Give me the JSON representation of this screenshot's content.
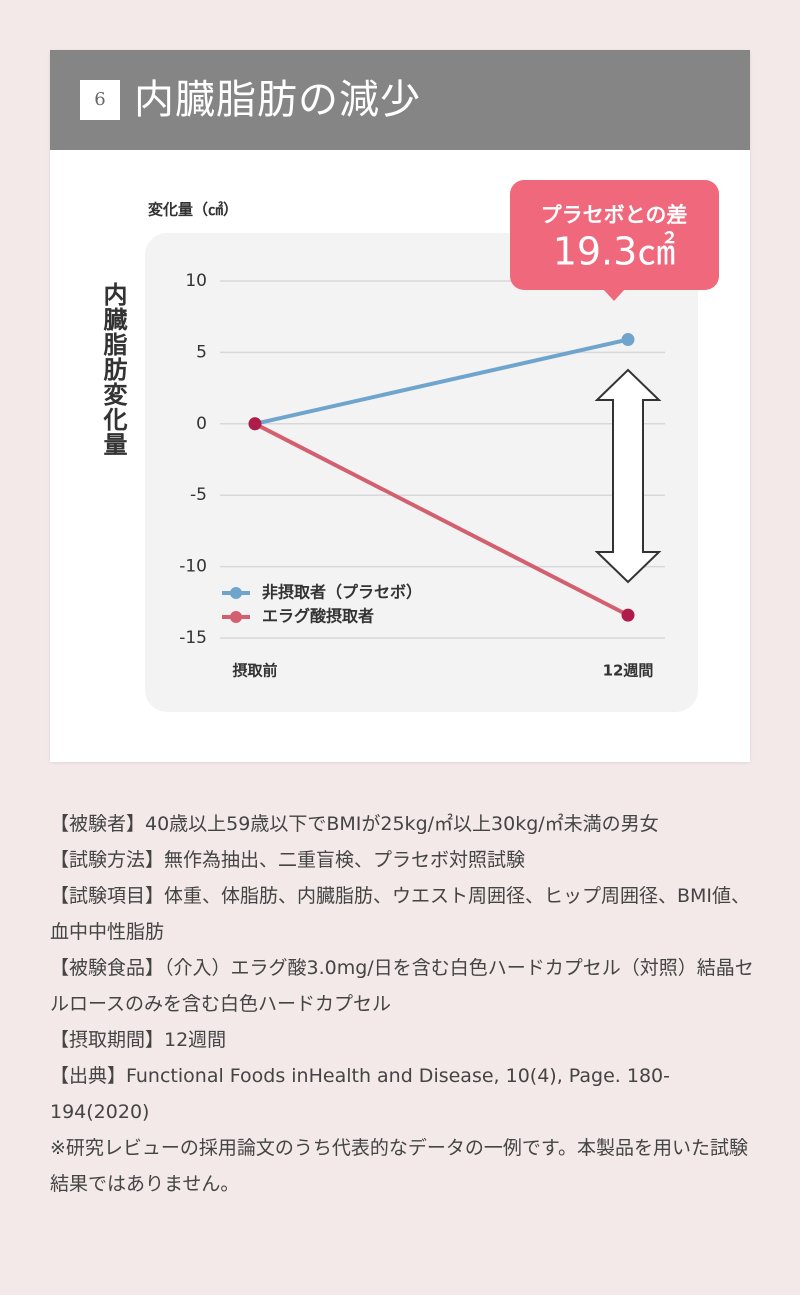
{
  "header": {
    "badge": "6",
    "title": "内臓脂肪の減少"
  },
  "chart_data": {
    "type": "line",
    "y_label": "変化量（㎠）",
    "y_axis_title": "内臓脂肪変化量",
    "categories": [
      "摂取前",
      "12週間"
    ],
    "series": [
      {
        "name": "非摂取者（プラセボ）",
        "color": "#6fa5cd",
        "marker_color": "#6fa5cd",
        "values": [
          0,
          5.9
        ]
      },
      {
        "name": "エラグ酸摂取者",
        "color": "#d3606f",
        "marker_color": "#b01c4a",
        "values": [
          0,
          -13.4
        ]
      }
    ],
    "ylim": [
      -15,
      10
    ],
    "yticks": [
      -15,
      -10,
      -5,
      0,
      5,
      10
    ],
    "grid": true,
    "legend": "lower left",
    "annotations": [
      "プラセボとの差",
      "19.3㎠"
    ]
  },
  "notes": [
    "【被験者】40歳以上59歳以下でBMIが25kg/㎡以上30kg/㎡未満の男女",
    "【試験方法】無作為抽出、二重盲検、プラセボ対照試験",
    "【試験項目】体重、体脂肪、内臓脂肪、ウエスト周囲径、ヒップ周囲径、BMI値、血中中性脂肪",
    "【被験食品】（介入）エラグ酸3.0mg/日を含む白色ハードカプセル（対照）結晶セルロースのみを含む白色ハードカプセル",
    "【摂取期間】12週間",
    "【出典】Functional Foods inHealth and Disease, 10(4), Page. 180-194(2020)",
    "※研究レビューの採用論文のうち代表的なデータの一例です。本製品を用いた試験結果ではありません。"
  ]
}
